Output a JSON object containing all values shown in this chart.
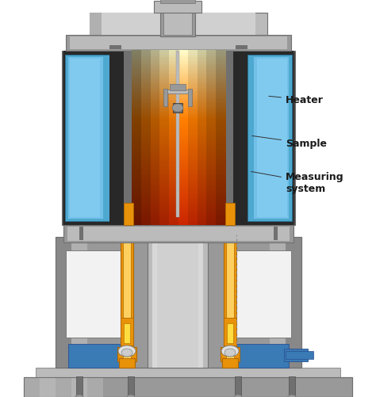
{
  "bg_color": "#ffffff",
  "labels": {
    "heater": "Heater",
    "sample": "Sample",
    "measuring": "Measuring\nsystem"
  },
  "colors": {
    "silver_dark": "#707070",
    "silver_mid": "#999999",
    "silver_light": "#bbbbbb",
    "silver_lighter": "#cccccc",
    "silver_bright": "#d8d8d8",
    "black_body": "#282828",
    "dark_gray": "#404040",
    "mid_gray": "#585858",
    "blue_cool": "#4ea8d0",
    "blue_panel": "#3a7ab5",
    "orange_hot": "#dd4400",
    "orange_mid": "#ff7700",
    "yellow_hot": "#ffcc00",
    "gold_orange": "#e8920a",
    "gold_dark": "#b06800",
    "white_light": "#ffffff",
    "near_white": "#f0f0f0"
  }
}
